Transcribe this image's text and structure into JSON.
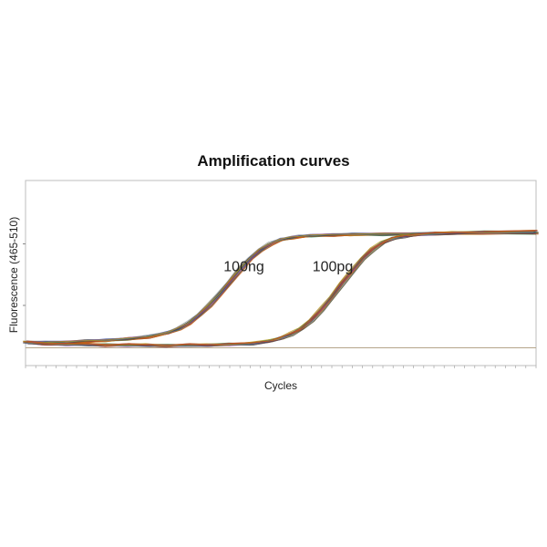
{
  "chart_data": {
    "type": "line",
    "title": "Amplification curves",
    "xlabel": "Cycles",
    "ylabel": "Fluorescence (465-510)",
    "xlim": [
      0,
      50
    ],
    "ylim": [
      0,
      100
    ],
    "grid": false,
    "legend": "none",
    "threshold": 9,
    "annotations": [
      {
        "text": "100ng",
        "x": 19.4,
        "y": 69
      },
      {
        "text": "100pg",
        "x": 28.1,
        "y": 69
      }
    ],
    "series": [
      {
        "group": "100ng",
        "x": [
          0,
          2,
          4,
          6,
          8,
          10,
          12,
          14,
          15,
          16,
          17,
          18,
          19,
          20,
          21,
          22,
          23,
          24,
          25,
          26,
          27,
          28,
          30,
          32,
          35,
          40,
          45,
          50
        ],
        "y": [
          13,
          13,
          13,
          14,
          14.5,
          15.5,
          17,
          20,
          23,
          27,
          33,
          40,
          48,
          57,
          66,
          74,
          80.5,
          85,
          88,
          89.5,
          90.5,
          91,
          91.5,
          92,
          92,
          92.5,
          93,
          93
        ]
      },
      {
        "group": "100pg",
        "x": [
          0,
          2,
          4,
          6,
          8,
          10,
          12,
          14,
          16,
          18,
          20,
          22,
          24,
          25,
          26,
          27,
          28,
          29,
          30,
          31,
          32,
          33,
          34,
          35,
          36,
          37,
          38,
          40,
          42,
          45,
          50
        ],
        "y": [
          13,
          12,
          11.5,
          11.5,
          11,
          11,
          11,
          10.5,
          11,
          11,
          11.5,
          12,
          14,
          16,
          19,
          23,
          29,
          37,
          46,
          56,
          65,
          74,
          81,
          86,
          89,
          90.5,
          91.5,
          92.5,
          93,
          93.5,
          94
        ]
      }
    ],
    "colors": [
      "#c0392b",
      "#2c3e9e",
      "#1e8449",
      "#8e44ad",
      "#d35400",
      "#4a4a4a",
      "#7f8c8d",
      "#b7950b"
    ]
  }
}
